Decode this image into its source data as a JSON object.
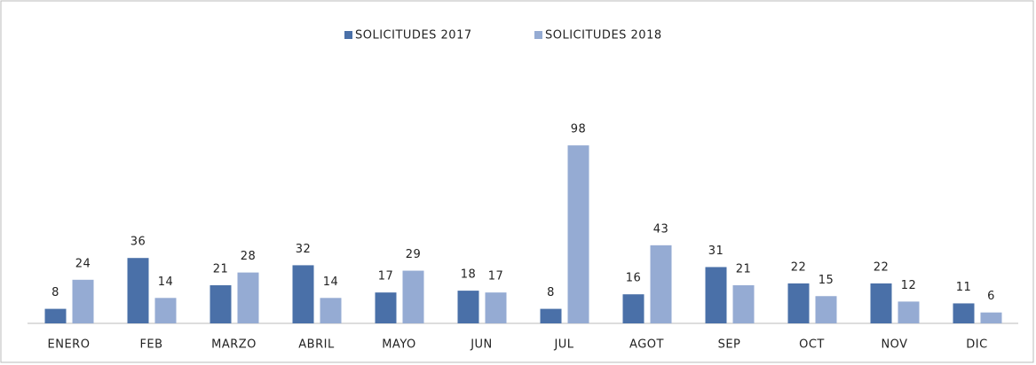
{
  "chart_data": {
    "type": "bar",
    "categories": [
      "ENERO",
      "FEB",
      "MARZO",
      "ABRIL",
      "MAYO",
      "JUN",
      "JUL",
      "AGOT",
      "SEP",
      "OCT",
      "NOV",
      "DIC"
    ],
    "series": [
      {
        "name": "SOLICITUDES 2017",
        "color": "#4a70a8",
        "values": [
          8,
          36,
          21,
          32,
          17,
          18,
          8,
          16,
          31,
          22,
          22,
          11
        ]
      },
      {
        "name": "SOLICITUDES 2018",
        "color": "#95abd3",
        "values": [
          24,
          14,
          28,
          14,
          29,
          17,
          98,
          43,
          21,
          15,
          12,
          6
        ]
      }
    ],
    "ylim": [
      0,
      100
    ],
    "legend": "top"
  }
}
